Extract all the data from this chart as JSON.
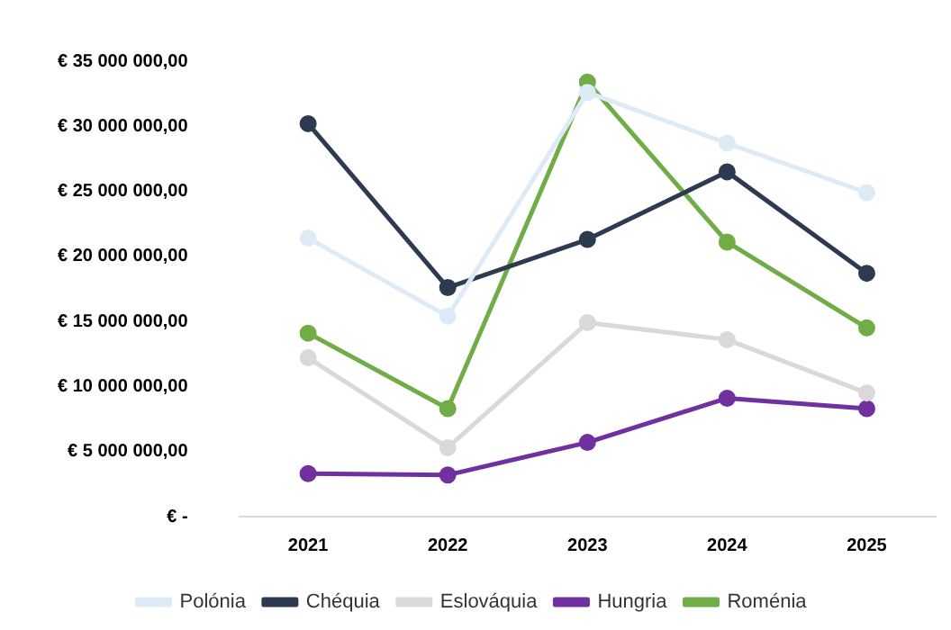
{
  "chart_data": {
    "type": "line",
    "categories": [
      "2021",
      "2022",
      "2023",
      "2024",
      "2025"
    ],
    "series": [
      {
        "name": "Polónia",
        "color": "#deebf7",
        "values": [
          21400000,
          15400000,
          32600000,
          28700000,
          24900000
        ]
      },
      {
        "name": "Chéquia",
        "color": "#2e3a4f",
        "values": [
          30200000,
          17600000,
          21300000,
          26500000,
          18700000
        ]
      },
      {
        "name": "Eslováquia",
        "color": "#d9d9d9",
        "values": [
          12200000,
          5300000,
          14900000,
          13600000,
          9500000
        ]
      },
      {
        "name": "Hungria",
        "color": "#7030a0",
        "values": [
          3300000,
          3200000,
          5700000,
          9100000,
          8300000
        ]
      },
      {
        "name": "Roménia",
        "color": "#70ad47",
        "values": [
          14100000,
          8300000,
          33400000,
          21100000,
          14500000
        ]
      }
    ],
    "ylim": [
      0,
      35000000
    ],
    "yticks": [
      {
        "value": 0,
        "label": "€ -"
      },
      {
        "value": 5000000,
        "label": "€ 5 000 000,00"
      },
      {
        "value": 10000000,
        "label": "€ 10 000 000,00"
      },
      {
        "value": 15000000,
        "label": "€ 15 000 000,00"
      },
      {
        "value": 20000000,
        "label": "€ 20 000 000,00"
      },
      {
        "value": 25000000,
        "label": "€ 25 000 000,00"
      },
      {
        "value": 30000000,
        "label": "€ 30 000 000,00"
      },
      {
        "value": 35000000,
        "label": "€ 35 000 000,00"
      }
    ],
    "grid": false,
    "legend": "bottom",
    "marker": "circle",
    "line_style": "solid"
  }
}
